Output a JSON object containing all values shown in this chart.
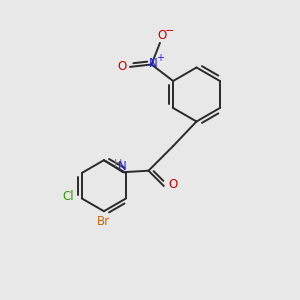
{
  "bg_color": "#e8e8e8",
  "bond_color": "#2a2a2a",
  "bond_width": 1.4,
  "colors": {
    "N": "#1a1aff",
    "O": "#cc0000",
    "Cl": "#339900",
    "Br": "#cc6600",
    "C": "#2a2a2a",
    "H": "#777777"
  },
  "font_size": 8.5,
  "font_size_small": 7.0
}
